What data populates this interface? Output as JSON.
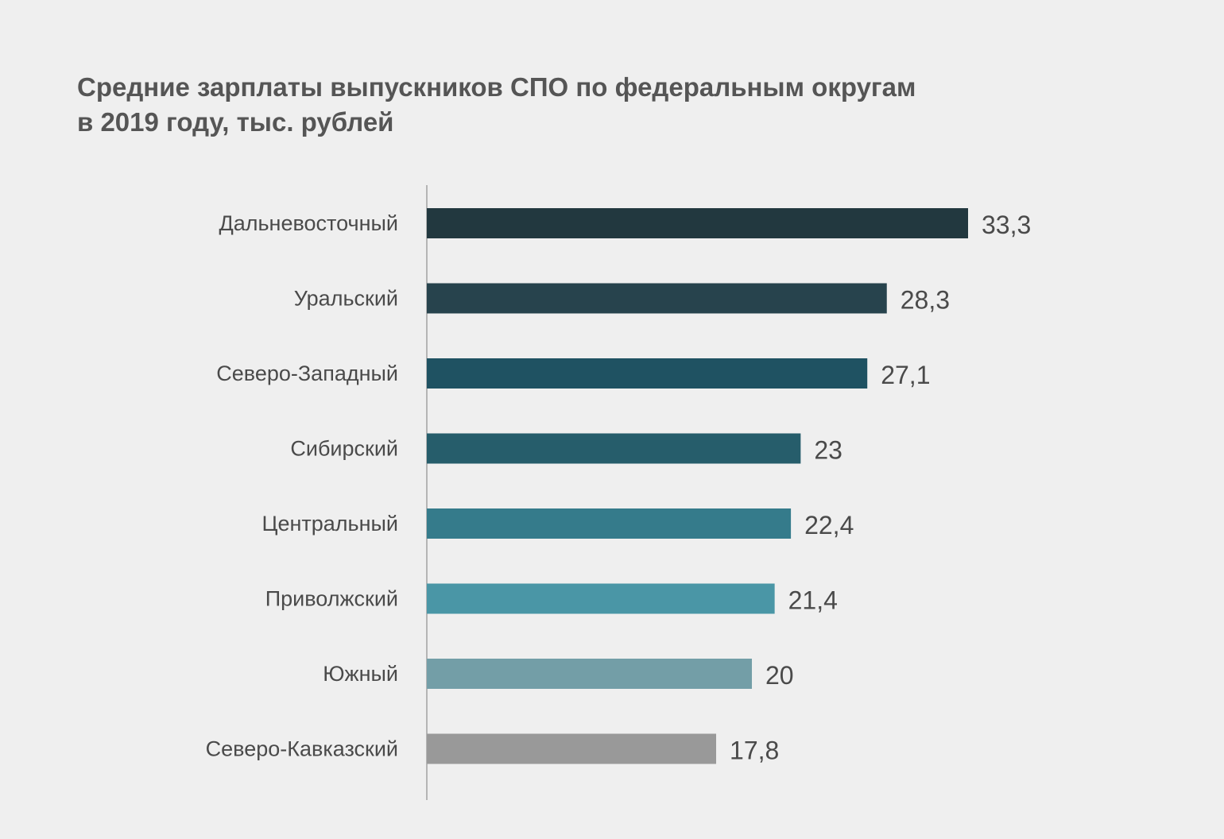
{
  "title": {
    "line1": "Средние зарплаты выпускников СПО по федеральным округам",
    "line2": "в 2019 году, тыс. рублей"
  },
  "chart_data": {
    "type": "bar",
    "orientation": "horizontal",
    "categories": [
      "Дальневосточный",
      "Уральский",
      "Северо-Западный",
      "Сибирский",
      "Центральный",
      "Приволжский",
      "Южный",
      "Северо-Кавказский"
    ],
    "values": [
      33.3,
      28.3,
      27.1,
      23,
      22.4,
      21.4,
      20,
      17.8
    ],
    "value_labels": [
      "33,3",
      "28,3",
      "27,1",
      "23",
      "22,4",
      "21,4",
      "20",
      "17,8"
    ],
    "colors": [
      "#22383f",
      "#27434d",
      "#1f5262",
      "#265d6b",
      "#357b8b",
      "#4a96a6",
      "#739ea7",
      "#999999"
    ],
    "title": "Средние зарплаты выпускников СПО по федеральным округам в 2019 году, тыс. рублей",
    "xlabel": "",
    "ylabel": "",
    "xlim": [
      0,
      33.3
    ],
    "grid": false,
    "legend": "none"
  }
}
